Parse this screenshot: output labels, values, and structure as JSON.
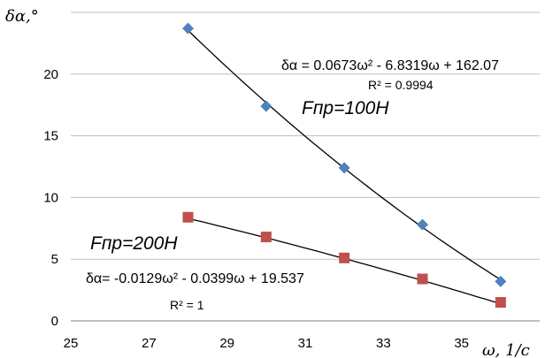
{
  "chart_data": {
    "type": "scatter",
    "ylabel": "δα,°",
    "xlabel": "ω, 1/c",
    "xlim": [
      25,
      37
    ],
    "ylim": [
      0,
      25
    ],
    "xticks": [
      "25",
      "27",
      "29",
      "31",
      "33",
      "35"
    ],
    "yticks": [
      "0",
      "5",
      "10",
      "15",
      "20"
    ],
    "grid": "horizontal",
    "series": [
      {
        "name": "Fпр=100Н",
        "marker": "diamond",
        "color": "#4f81bd",
        "x": [
          28,
          30,
          32,
          34,
          36
        ],
        "y": [
          23.7,
          17.4,
          12.4,
          7.8,
          3.2
        ],
        "trendline": "δα = 0.0673ω² - 6.8319ω + 162.07",
        "r2": "R² = 0.9994",
        "coef": [
          0.0673,
          -6.8319,
          162.07
        ]
      },
      {
        "name": "Fпр=200Н",
        "marker": "square",
        "color": "#c0504d",
        "x": [
          28,
          30,
          32,
          34,
          36
        ],
        "y": [
          8.4,
          6.8,
          5.1,
          3.4,
          1.5
        ],
        "trendline": "δα= -0.0129ω² - 0.0399ω + 19.537",
        "r2": "R² = 1",
        "coef": [
          -0.0129,
          -0.0399,
          19.537
        ]
      }
    ]
  }
}
